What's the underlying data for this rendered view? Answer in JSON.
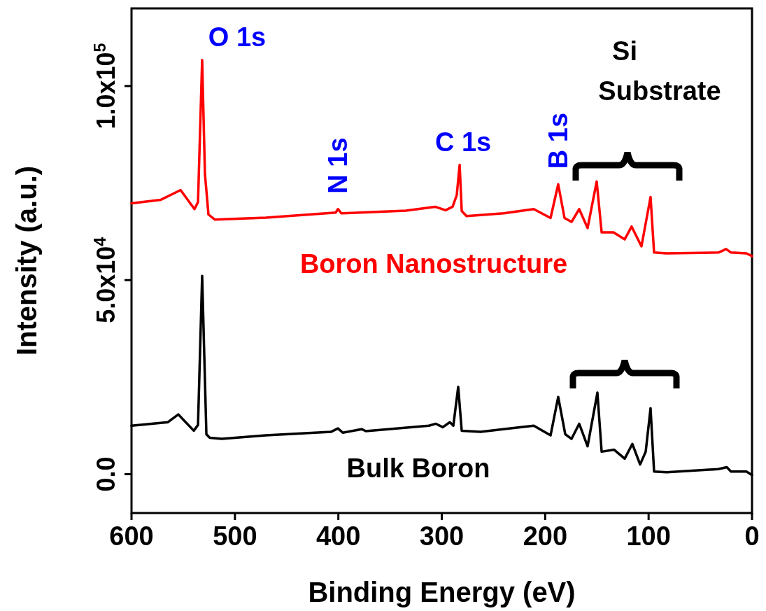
{
  "chart_data": {
    "type": "line",
    "xlabel": "Binding Energy (eV)",
    "ylabel": "Intensity (a.u.)",
    "xlim": [
      600,
      0
    ],
    "xticks": [
      600,
      500,
      400,
      300,
      200,
      100,
      0
    ],
    "ylim": [
      -10000,
      120000
    ],
    "yticks": [
      {
        "value": 0,
        "label": "0.0"
      },
      {
        "value": 50000,
        "label": "5.0x10$^{4}$"
      },
      {
        "value": 100000,
        "label": "1.0x10$^{5}$"
      }
    ],
    "grid": false,
    "line_style": "solid",
    "series": [
      {
        "name": "Boron Nanostructure",
        "color": "#ff0000",
        "x": [
          600,
          571.6,
          552.6,
          539.1,
          535.7,
          531.7,
          529,
          525.6,
          519.5,
          470.1,
          402.5,
          400.4,
          397,
          334.8,
          306.4,
          296.3,
          289.5,
          285.5,
          282.7,
          280.7,
          276,
          240.1,
          211,
          194.8,
          187.4,
          181.3,
          174.5,
          167.1,
          159,
          150.2,
          145.4,
          133.9,
          123.1,
          116.4,
          106.9,
          98.1,
          94.7,
          82.5,
          32.5,
          25,
          20.3,
          5.4,
          0
        ],
        "values": [
          69800,
          70700,
          73200,
          68300,
          70100,
          106700,
          77400,
          66900,
          65600,
          66100,
          67400,
          68300,
          67200,
          67900,
          68900,
          68000,
          68900,
          71900,
          79700,
          67800,
          66500,
          67200,
          68300,
          66000,
          74700,
          66000,
          65000,
          68300,
          63400,
          75400,
          62300,
          62300,
          60500,
          63800,
          58700,
          71400,
          57100,
          56900,
          57100,
          58000,
          57100,
          56900,
          56200
        ]
      },
      {
        "name": "Bulk Boron",
        "color": "#000000",
        "x": [
          600,
          564.8,
          554.7,
          539.8,
          535.7,
          531.7,
          527.6,
          524.3,
          512.7,
          470.1,
          407.2,
          400.4,
          395.7,
          377.4,
          373.4,
          312.5,
          305.7,
          299,
          292.2,
          288.8,
          284.1,
          280.7,
          262.5,
          233.4,
          211,
          194.8,
          187.4,
          180.6,
          174.5,
          167.1,
          159,
          149.5,
          145.4,
          133.3,
          123.1,
          115.7,
          108.2,
          102.8,
          98.1,
          94.7,
          82.5,
          32.5,
          24.4,
          20.3,
          5.4,
          0
        ],
        "values": [
          12500,
          13400,
          15400,
          11200,
          12700,
          51100,
          10300,
          9400,
          9100,
          10000,
          10900,
          11800,
          10700,
          11600,
          11100,
          12500,
          13000,
          12100,
          13400,
          12500,
          22500,
          11200,
          10900,
          11800,
          12500,
          10000,
          19900,
          10300,
          9100,
          13000,
          7200,
          21000,
          5800,
          6300,
          4000,
          7800,
          2500,
          5800,
          17000,
          700,
          500,
          1300,
          1800,
          700,
          700,
          -200
        ]
      }
    ],
    "annotations": [
      {
        "text": "O 1s",
        "x": 531.7,
        "y": 106700
      },
      {
        "text": "N 1s",
        "x": 400.4,
        "y": 68300
      },
      {
        "text": "C 1s",
        "x": 282.7,
        "y": 79700
      },
      {
        "text": "B 1s",
        "x": 187.4,
        "y": 74700
      },
      "Si Substrate"
    ]
  }
}
